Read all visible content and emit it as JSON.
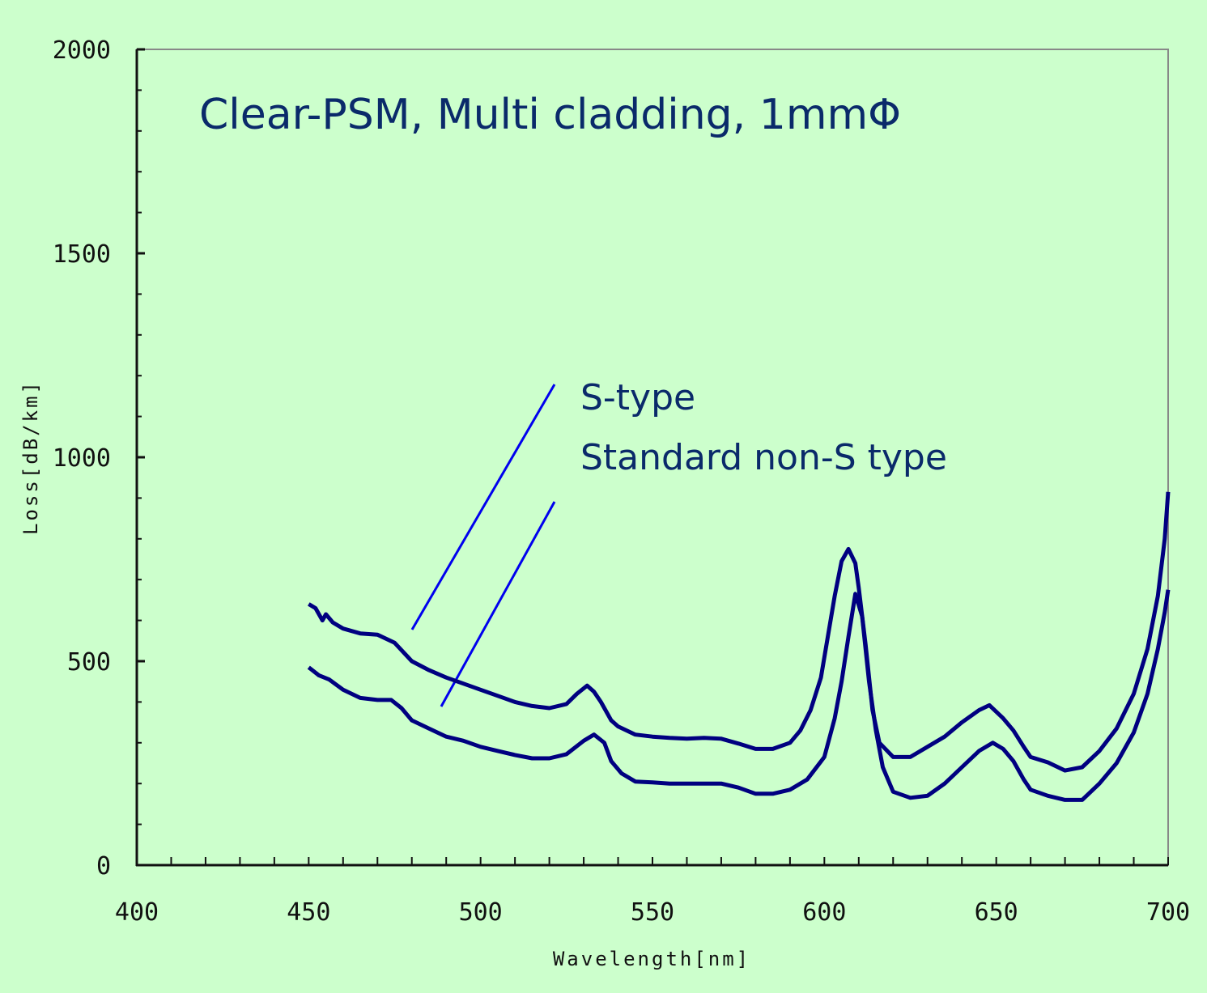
{
  "chart_data": {
    "type": "line",
    "title": "Clear-PSM, Multi cladding, 1mmΦ",
    "xlabel": "Wavelength[nm]",
    "ylabel": "Loss[dB/km]",
    "xlim": [
      400,
      700
    ],
    "ylim": [
      0,
      2000
    ],
    "x_ticks": [
      400,
      450,
      500,
      550,
      600,
      650,
      700
    ],
    "y_ticks": [
      0,
      500,
      1000,
      1500,
      2000
    ],
    "x_minor_step": 10,
    "y_minor_step": 100,
    "grid": false,
    "legend_position": "inside, upper middle, with pointer lines",
    "series": [
      {
        "name": "S-type",
        "color": "#000080",
        "points": [
          [
            450,
            640
          ],
          [
            452,
            630
          ],
          [
            454,
            600
          ],
          [
            455,
            615
          ],
          [
            457,
            595
          ],
          [
            460,
            580
          ],
          [
            465,
            568
          ],
          [
            470,
            565
          ],
          [
            475,
            545
          ],
          [
            480,
            500
          ],
          [
            485,
            478
          ],
          [
            490,
            460
          ],
          [
            495,
            445
          ],
          [
            500,
            430
          ],
          [
            505,
            415
          ],
          [
            510,
            400
          ],
          [
            515,
            390
          ],
          [
            520,
            385
          ],
          [
            525,
            395
          ],
          [
            528,
            420
          ],
          [
            531,
            440
          ],
          [
            533,
            425
          ],
          [
            535,
            400
          ],
          [
            538,
            355
          ],
          [
            540,
            340
          ],
          [
            545,
            320
          ],
          [
            550,
            315
          ],
          [
            555,
            312
          ],
          [
            560,
            310
          ],
          [
            565,
            312
          ],
          [
            570,
            310
          ],
          [
            575,
            298
          ],
          [
            580,
            285
          ],
          [
            585,
            285
          ],
          [
            590,
            300
          ],
          [
            593,
            330
          ],
          [
            596,
            380
          ],
          [
            599,
            460
          ],
          [
            601,
            560
          ],
          [
            603,
            660
          ],
          [
            605,
            745
          ],
          [
            607,
            775
          ],
          [
            609,
            740
          ],
          [
            610,
            680
          ],
          [
            612,
            540
          ],
          [
            614,
            380
          ],
          [
            616,
            300
          ],
          [
            620,
            265
          ],
          [
            625,
            265
          ],
          [
            630,
            290
          ],
          [
            635,
            315
          ],
          [
            640,
            350
          ],
          [
            645,
            380
          ],
          [
            648,
            392
          ],
          [
            652,
            360
          ],
          [
            655,
            330
          ],
          [
            658,
            290
          ],
          [
            660,
            265
          ],
          [
            665,
            252
          ],
          [
            670,
            232
          ],
          [
            675,
            240
          ],
          [
            680,
            280
          ],
          [
            685,
            335
          ],
          [
            690,
            420
          ],
          [
            694,
            530
          ],
          [
            697,
            660
          ],
          [
            699,
            800
          ],
          [
            700,
            915
          ]
        ]
      },
      {
        "name": "Standard non-S type",
        "color": "#000080",
        "points": [
          [
            450,
            485
          ],
          [
            453,
            465
          ],
          [
            456,
            455
          ],
          [
            460,
            430
          ],
          [
            465,
            410
          ],
          [
            470,
            405
          ],
          [
            474,
            405
          ],
          [
            477,
            385
          ],
          [
            480,
            355
          ],
          [
            485,
            335
          ],
          [
            490,
            315
          ],
          [
            495,
            305
          ],
          [
            500,
            290
          ],
          [
            505,
            280
          ],
          [
            510,
            270
          ],
          [
            515,
            262
          ],
          [
            520,
            262
          ],
          [
            525,
            272
          ],
          [
            530,
            305
          ],
          [
            533,
            320
          ],
          [
            536,
            300
          ],
          [
            538,
            255
          ],
          [
            541,
            225
          ],
          [
            545,
            205
          ],
          [
            550,
            203
          ],
          [
            555,
            200
          ],
          [
            560,
            200
          ],
          [
            565,
            200
          ],
          [
            570,
            200
          ],
          [
            575,
            190
          ],
          [
            580,
            175
          ],
          [
            585,
            175
          ],
          [
            590,
            185
          ],
          [
            595,
            210
          ],
          [
            600,
            265
          ],
          [
            603,
            360
          ],
          [
            605,
            450
          ],
          [
            607,
            560
          ],
          [
            609,
            665
          ],
          [
            611,
            610
          ],
          [
            613,
            450
          ],
          [
            615,
            330
          ],
          [
            617,
            240
          ],
          [
            620,
            180
          ],
          [
            625,
            165
          ],
          [
            630,
            170
          ],
          [
            635,
            200
          ],
          [
            640,
            240
          ],
          [
            645,
            280
          ],
          [
            649,
            300
          ],
          [
            652,
            285
          ],
          [
            655,
            255
          ],
          [
            658,
            210
          ],
          [
            660,
            185
          ],
          [
            665,
            170
          ],
          [
            670,
            160
          ],
          [
            675,
            160
          ],
          [
            680,
            200
          ],
          [
            685,
            250
          ],
          [
            690,
            325
          ],
          [
            694,
            420
          ],
          [
            697,
            530
          ],
          [
            699,
            620
          ],
          [
            700,
            675
          ]
        ]
      }
    ],
    "annotations": [
      {
        "text": "S-type",
        "pointer_from": [
          510,
          580
        ],
        "pointer_to": [
          520,
          1180
        ]
      },
      {
        "text": "Standard non-S type",
        "pointer_from": [
          545,
          870
        ],
        "pointer_to": [
          684,
          620
        ]
      }
    ]
  },
  "labels": {
    "title": "Clear-PSM, Multi cladding, 1mmΦ",
    "legend_s": "S-type",
    "legend_std": "Standard non-S type",
    "xlabel": "Wavelength[nm]",
    "ylabel": "Loss[dB/km]"
  },
  "colors": {
    "background": "#ccffcc",
    "curve": "#000080",
    "pointer": "#0000ee",
    "text": "#0a2a6a",
    "axis": "#111111",
    "frame": "#888888"
  }
}
